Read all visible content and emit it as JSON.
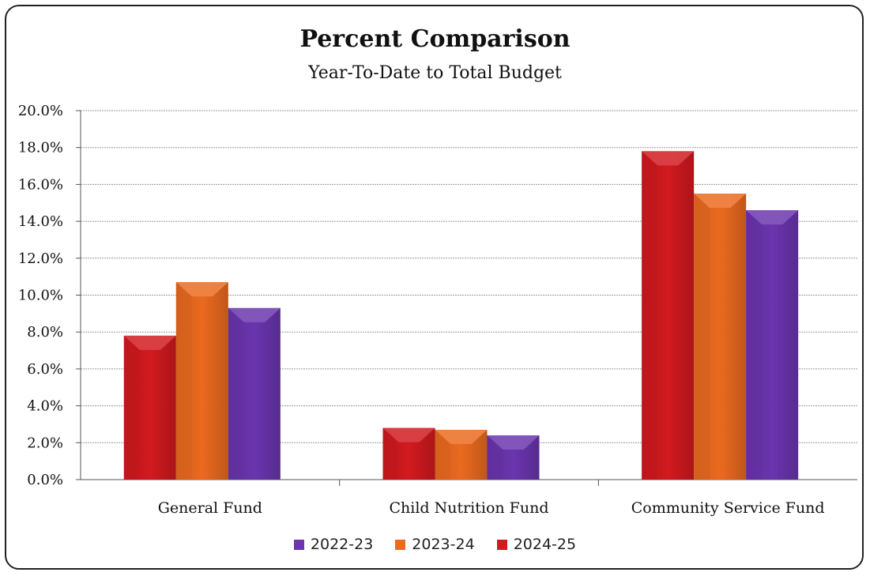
{
  "chart_data": {
    "type": "bar",
    "title": "Percent Comparison",
    "subtitle": "Year-To-Date to Total Budget",
    "categories": [
      "General Fund",
      "Child Nutrition Fund",
      "Community Service Fund"
    ],
    "series": [
      {
        "name": "2024-25",
        "values": [
          7.8,
          2.8,
          17.8
        ],
        "color": "#d11a1f"
      },
      {
        "name": "2023-24",
        "values": [
          10.7,
          2.7,
          15.5
        ],
        "color": "#ea6a1f"
      },
      {
        "name": "2022-23",
        "values": [
          9.3,
          2.4,
          14.6
        ],
        "color": "#6a35ae"
      }
    ],
    "legend_order": [
      "2022-23",
      "2023-24",
      "2024-25"
    ],
    "yticks": [
      "0.0%",
      "2.0%",
      "4.0%",
      "6.0%",
      "8.0%",
      "10.0%",
      "12.0%",
      "14.0%",
      "16.0%",
      "18.0%",
      "20.0%"
    ],
    "ylim": [
      0,
      20
    ],
    "grid": true,
    "legend_position": "bottom"
  }
}
